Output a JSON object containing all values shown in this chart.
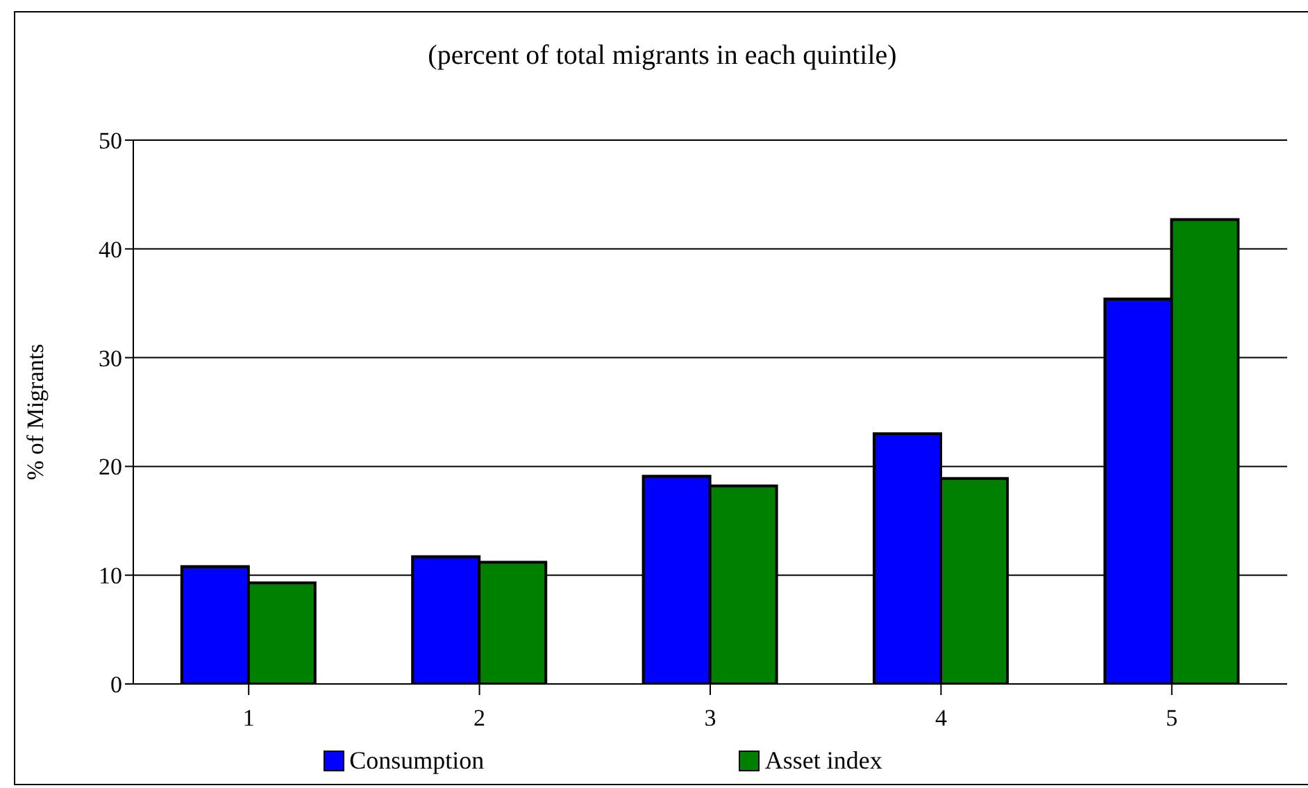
{
  "chart_data": {
    "type": "bar",
    "title": "(percent of total migrants in each quintile)",
    "ylabel": "% of Migrants",
    "categories": [
      "1",
      "2",
      "3",
      "4",
      "5"
    ],
    "series": [
      {
        "name": "Consumption",
        "color": "#0000ff",
        "values": [
          10.8,
          11.7,
          19.1,
          23.0,
          35.4
        ]
      },
      {
        "name": "Asset index",
        "color": "#008000",
        "values": [
          9.3,
          11.2,
          18.2,
          18.9,
          42.7
        ]
      }
    ],
    "ylim": [
      0,
      50
    ],
    "yticks": [
      0,
      10,
      20,
      30,
      40,
      50
    ],
    "grid": "y",
    "legend": "bottom"
  }
}
